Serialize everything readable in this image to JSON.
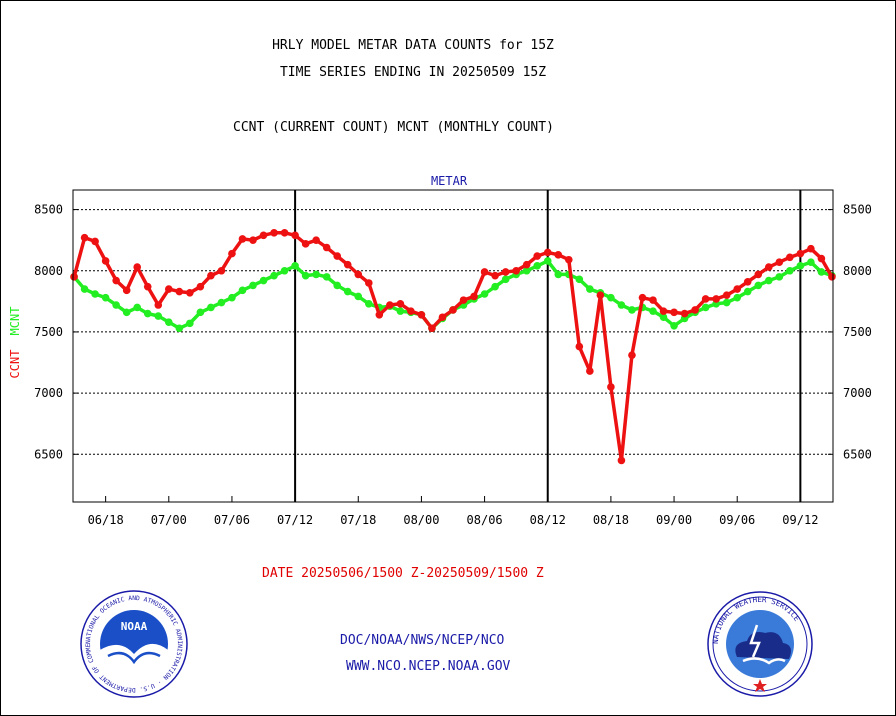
{
  "header": {
    "title_line1": "HRLY MODEL METAR DATA COUNTS for 15Z",
    "title_line2": "TIME SERIES ENDING IN 20250509 15Z",
    "subtitle": "CCNT (CURRENT COUNT) MCNT (MONTHLY COUNT)"
  },
  "footer": {
    "date_range": "DATE 20250506/1500 Z-20250509/1500 Z",
    "org": "DOC/NOAA/NWS/NCEP/NCO",
    "url": "WWW.NCO.NCEP.NOAA.GOV"
  },
  "logos": {
    "left": {
      "center_text": "NOAA",
      "ring_text": "NATIONAL OCEANIC AND ATMOSPHERIC ADMINISTRATION · U.S. DEPARTMENT OF COMMERCE",
      "icon": "noaa-logo"
    },
    "right": {
      "ring_text": "NATIONAL WEATHER SERVICE",
      "icon": "nws-logo"
    }
  },
  "colors": {
    "ccnt": "#ee1111",
    "mcnt": "#22ee22",
    "text": "#000000",
    "blue": "#1a1aa8",
    "footer_date": "#e00000"
  },
  "chart_data": {
    "type": "line",
    "title": "METAR",
    "ylabel_left_1": "CCNT",
    "ylabel_left_2": "MCNT",
    "y_ticks": [
      6500,
      7000,
      7500,
      8000,
      8500
    ],
    "ylim": [
      6110,
      8660
    ],
    "x_ticks": [
      "06/18",
      "07/00",
      "07/06",
      "07/12",
      "07/18",
      "08/00",
      "08/06",
      "08/12",
      "08/18",
      "09/00",
      "09/06",
      "09/12"
    ],
    "x_tick_hours": [
      3,
      9,
      15,
      21,
      27,
      33,
      39,
      45,
      51,
      57,
      63,
      69
    ],
    "day_boundary_hours": [
      21,
      45,
      69
    ],
    "xlim": [
      -0.1,
      72.1
    ],
    "grid": true,
    "series": [
      {
        "name": "CCNT",
        "x": [
          0,
          1,
          2,
          3,
          4,
          5,
          6,
          7,
          8,
          9,
          10,
          11,
          12,
          13,
          14,
          15,
          16,
          17,
          18,
          19,
          20,
          21,
          22,
          23,
          24,
          25,
          26,
          27,
          28,
          29,
          30,
          31,
          32,
          33,
          34,
          35,
          36,
          37,
          38,
          39,
          40,
          41,
          42,
          43,
          44,
          45,
          46,
          47,
          48,
          49,
          50,
          51,
          52,
          53,
          54,
          55,
          56,
          57,
          58,
          59,
          60,
          61,
          62,
          63,
          64,
          65,
          66,
          67,
          68,
          69,
          70,
          71,
          72
        ],
        "values": [
          7950,
          8270,
          8240,
          8080,
          7920,
          7840,
          8030,
          7870,
          7720,
          7850,
          7830,
          7820,
          7870,
          7960,
          8000,
          8140,
          8260,
          8250,
          8290,
          8310,
          8310,
          8290,
          8220,
          8250,
          8190,
          8120,
          8050,
          7970,
          7900,
          7640,
          7720,
          7730,
          7670,
          7640,
          7530,
          7620,
          7680,
          7760,
          7790,
          7990,
          7960,
          7990,
          8000,
          8050,
          8120,
          8150,
          8130,
          8090,
          7380,
          7180,
          7800,
          7050,
          6450,
          7310,
          7780,
          7760,
          7670,
          7660,
          7650,
          7680,
          7770,
          7770,
          7800,
          7850,
          7910,
          7970,
          8030,
          8070,
          8110,
          8140,
          8180,
          8100,
          7950
        ]
      },
      {
        "name": "MCNT",
        "x": [
          0,
          1,
          2,
          3,
          4,
          5,
          6,
          7,
          8,
          9,
          10,
          11,
          12,
          13,
          14,
          15,
          16,
          17,
          18,
          19,
          20,
          21,
          22,
          23,
          24,
          25,
          26,
          27,
          28,
          29,
          30,
          31,
          32,
          33,
          34,
          35,
          36,
          37,
          38,
          39,
          40,
          41,
          42,
          43,
          44,
          45,
          46,
          47,
          48,
          49,
          50,
          51,
          52,
          53,
          54,
          55,
          56,
          57,
          58,
          59,
          60,
          61,
          62,
          63,
          64,
          65,
          66,
          67,
          68,
          69,
          70,
          71,
          72
        ],
        "values": [
          7950,
          7850,
          7810,
          7780,
          7720,
          7660,
          7700,
          7650,
          7630,
          7580,
          7530,
          7570,
          7660,
          7700,
          7740,
          7780,
          7840,
          7880,
          7920,
          7960,
          8000,
          8040,
          7960,
          7970,
          7950,
          7880,
          7830,
          7790,
          7730,
          7700,
          7710,
          7670,
          7660,
          7640,
          7530,
          7610,
          7680,
          7720,
          7770,
          7810,
          7870,
          7930,
          7970,
          8000,
          8040,
          8080,
          7970,
          7970,
          7930,
          7850,
          7820,
          7780,
          7720,
          7680,
          7700,
          7670,
          7620,
          7550,
          7610,
          7660,
          7700,
          7730,
          7740,
          7780,
          7830,
          7880,
          7920,
          7950,
          8000,
          8040,
          8070,
          7990,
          7960
        ]
      }
    ]
  }
}
